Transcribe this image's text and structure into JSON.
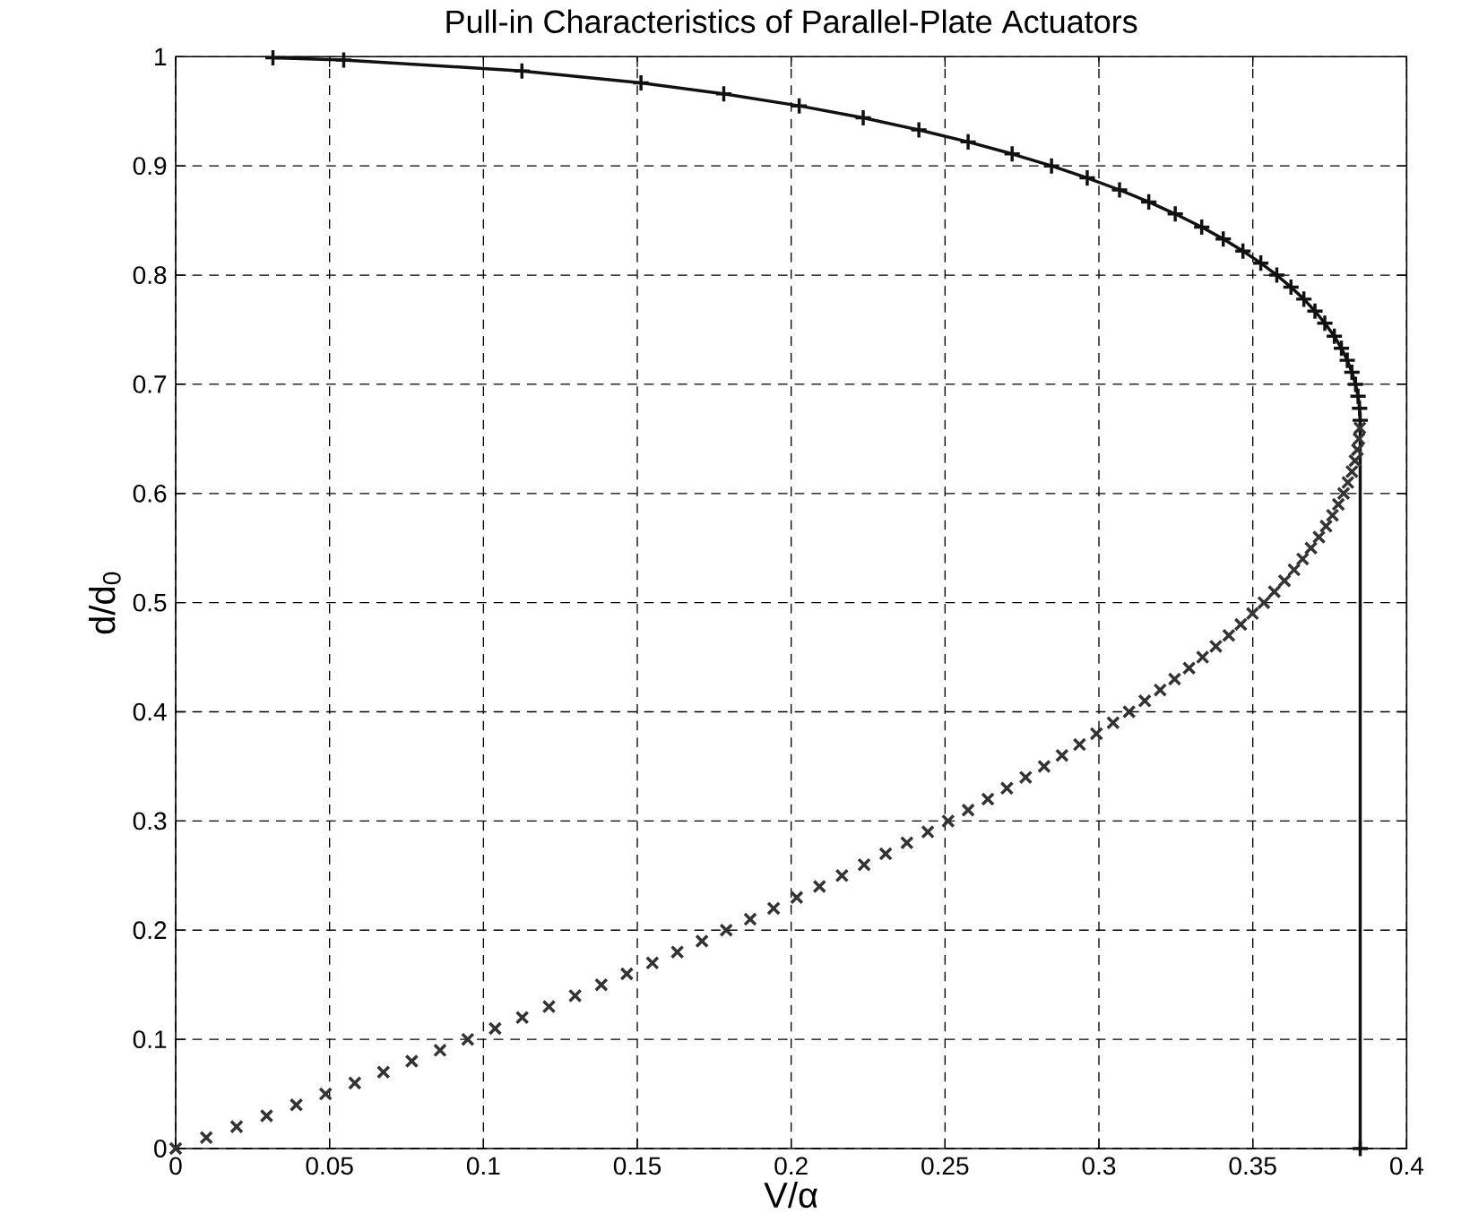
{
  "chart_data": {
    "type": "line",
    "title": "Pull-in Characteristics of Parallel-Plate Actuators",
    "xlabel": "V/α",
    "ylabel": "d/d$_{0}$",
    "series": [
      {
        "color": "#111111",
        "marker": "plus",
        "line_style": "solid",
        "x": [
          0.0316,
          0.0546,
          0.1125,
          0.1512,
          0.1781,
          0.2026,
          0.2234,
          0.2415,
          0.2575,
          0.2718,
          0.2846,
          0.2962,
          0.3067,
          0.3162,
          0.3248,
          0.3334,
          0.3404,
          0.3468,
          0.3526,
          0.3578,
          0.3624,
          0.3666,
          0.3702,
          0.3734,
          0.3765,
          0.3788,
          0.3807,
          0.3822,
          0.3834,
          0.3842,
          0.3847,
          0.3849,
          0.3849
        ],
        "values": [
          0.999,
          0.997,
          0.987,
          0.976,
          0.966,
          0.955,
          0.944,
          0.933,
          0.922,
          0.911,
          0.9,
          0.889,
          0.878,
          0.867,
          0.856,
          0.844,
          0.833,
          0.822,
          0.811,
          0.8,
          0.789,
          0.778,
          0.767,
          0.756,
          0.744,
          0.733,
          0.722,
          0.711,
          0.7,
          0.689,
          0.678,
          0.667,
          0
        ]
      },
      {
        "type": "scatter",
        "color": "#333333",
        "marker": "cross",
        "x": [
          0,
          0.00995,
          0.0198,
          0.02955,
          0.0392,
          0.0487,
          0.0582,
          0.0675,
          0.0767,
          0.0859,
          0.0949,
          0.1038,
          0.1126,
          0.1213,
          0.1298,
          0.1383,
          0.1466,
          0.1549,
          0.163,
          0.171,
          0.1789,
          0.1867,
          0.1943,
          0.2018,
          0.2092,
          0.2165,
          0.2237,
          0.2307,
          0.2376,
          0.2444,
          0.251,
          0.2575,
          0.2639,
          0.2701,
          0.2762,
          0.2822,
          0.288,
          0.2937,
          0.2992,
          0.3046,
          0.3098,
          0.3149,
          0.3199,
          0.3246,
          0.3293,
          0.3337,
          0.338,
          0.3422,
          0.3461,
          0.3499,
          0.3536,
          0.357,
          0.3603,
          0.3634,
          0.3662,
          0.3689,
          0.3715,
          0.3738,
          0.3759,
          0.3778,
          0.3795,
          0.3809,
          0.3822,
          0.3832,
          0.384,
          0.3845,
          0.3848
        ],
        "values": [
          0,
          0.01,
          0.02,
          0.03,
          0.04,
          0.05,
          0.06,
          0.07,
          0.08,
          0.09,
          0.1,
          0.11,
          0.12,
          0.13,
          0.14,
          0.15,
          0.16,
          0.17,
          0.18,
          0.19,
          0.2,
          0.21,
          0.22,
          0.23,
          0.24,
          0.25,
          0.26,
          0.27,
          0.28,
          0.29,
          0.3,
          0.31,
          0.32,
          0.33,
          0.34,
          0.35,
          0.36,
          0.37,
          0.38,
          0.39,
          0.4,
          0.41,
          0.42,
          0.43,
          0.44,
          0.45,
          0.46,
          0.47,
          0.48,
          0.49,
          0.5,
          0.51,
          0.52,
          0.53,
          0.54,
          0.55,
          0.56,
          0.57,
          0.58,
          0.59,
          0.6,
          0.61,
          0.62,
          0.63,
          0.64,
          0.65,
          0.66
        ]
      }
    ],
    "xlim": [
      0,
      0.4
    ],
    "ylim": [
      0,
      1
    ],
    "xticks": [
      0,
      0.05,
      0.1,
      0.15,
      0.2,
      0.25,
      0.3,
      0.35,
      0.4
    ],
    "yticks": [
      0,
      0.1,
      0.2,
      0.3,
      0.4,
      0.5,
      0.6,
      0.7,
      0.8,
      0.9,
      1
    ],
    "grid": true
  }
}
